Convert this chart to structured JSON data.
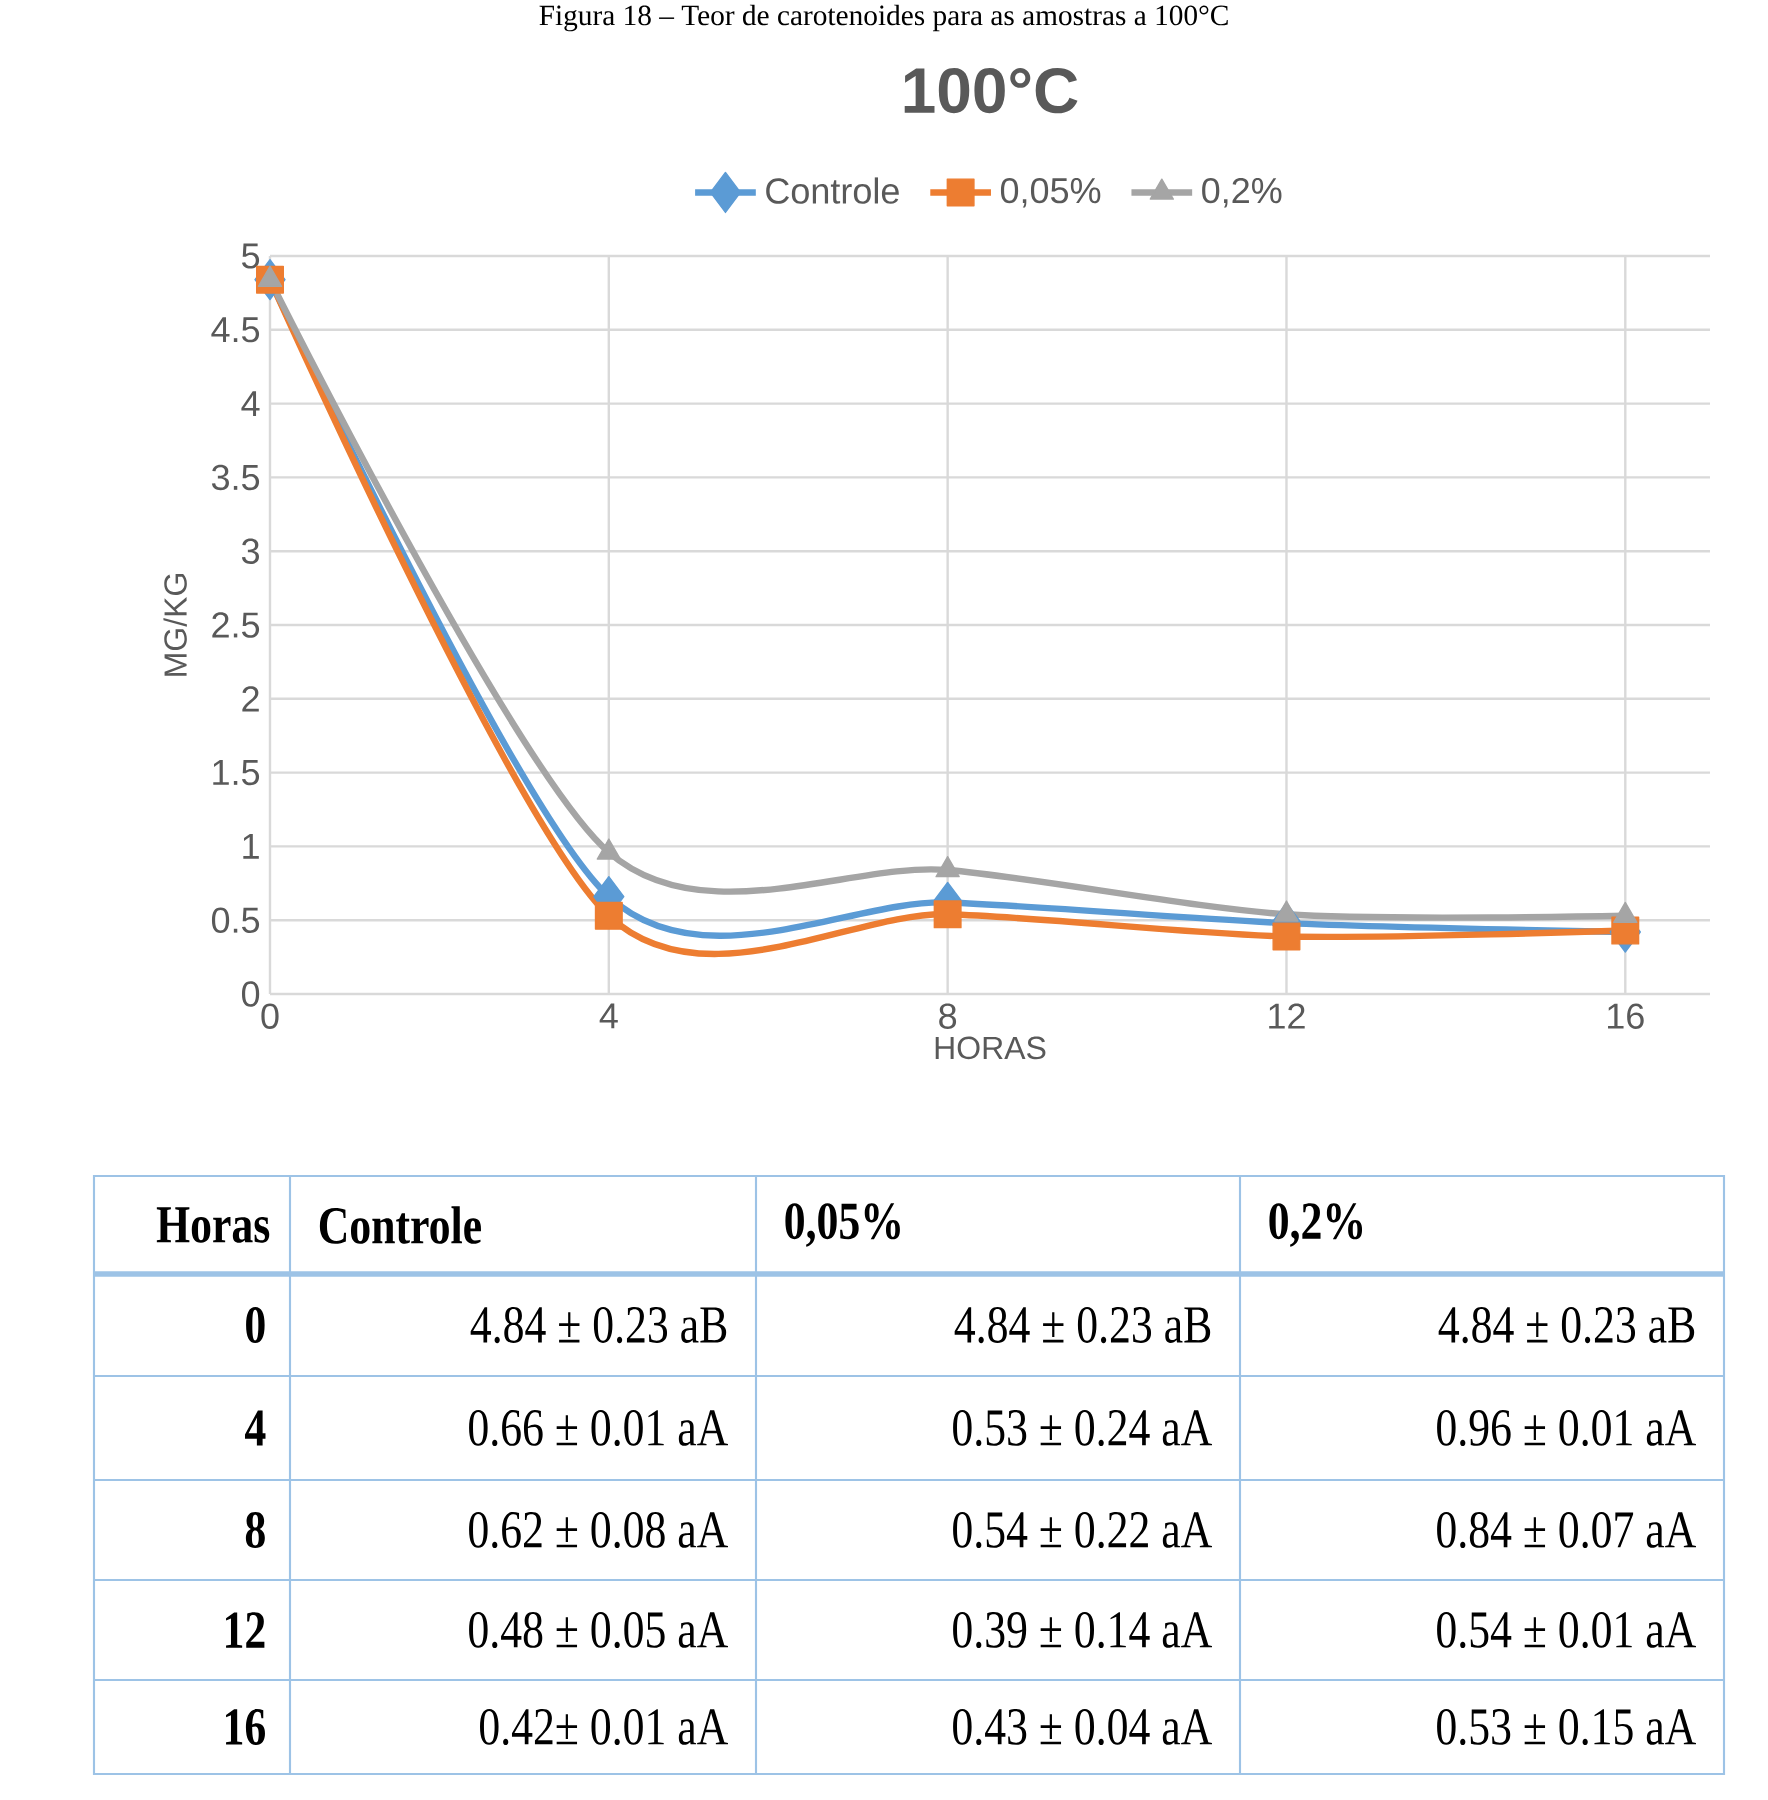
{
  "chart_data": {
    "type": "line",
    "title": "100°C",
    "xlabel": "HORAS",
    "ylabel": "MG/KG",
    "x": [
      0,
      4,
      8,
      12,
      16
    ],
    "xlim": [
      0,
      17
    ],
    "xticks": [
      0,
      4,
      8,
      12,
      16
    ],
    "ylim": [
      0,
      5
    ],
    "yticks": [
      0,
      0.5,
      1,
      1.5,
      2,
      2.5,
      3,
      3.5,
      4,
      4.5,
      5
    ],
    "grid": true,
    "legend": "top",
    "line_style": "solid",
    "series": [
      {
        "name": "Controle",
        "color": "#5b9bd5",
        "marker": "diamond",
        "values": [
          4.84,
          0.66,
          0.62,
          0.48,
          0.42
        ]
      },
      {
        "name": "0,05%",
        "color": "#ed7d31",
        "marker": "square",
        "values": [
          4.84,
          0.53,
          0.54,
          0.39,
          0.43
        ]
      },
      {
        "name": "0,2%",
        "color": "#a5a5a5",
        "marker": "triangle",
        "values": [
          4.84,
          0.96,
          0.84,
          0.54,
          0.53
        ]
      }
    ],
    "annotations": [
      "Figura 18 – Teor de carotenoides para as amostras a 100°C",
      "Horas",
      "0",
      "4.84 ± 0.23 aB",
      "4.84 ± 0.23 aB",
      "4.84 ± 0.23 aB",
      "4",
      "0.66 ± 0.01 aA",
      "0.53 ± 0.24 aA",
      "0.96 ± 0.01 aA",
      "8",
      "0.62 ± 0.08 aA",
      "0.54 ± 0.22 aA",
      "0.84 ± 0.07 aA",
      "12",
      "0.48 ± 0.05 aA",
      "0.39 ± 0.14 aA",
      "0.54 ± 0.01 aA",
      "16",
      "0.42± 0.01 aA",
      "0.43 ± 0.04 aA",
      "0.53 ± 0.15 aA"
    ]
  }
}
